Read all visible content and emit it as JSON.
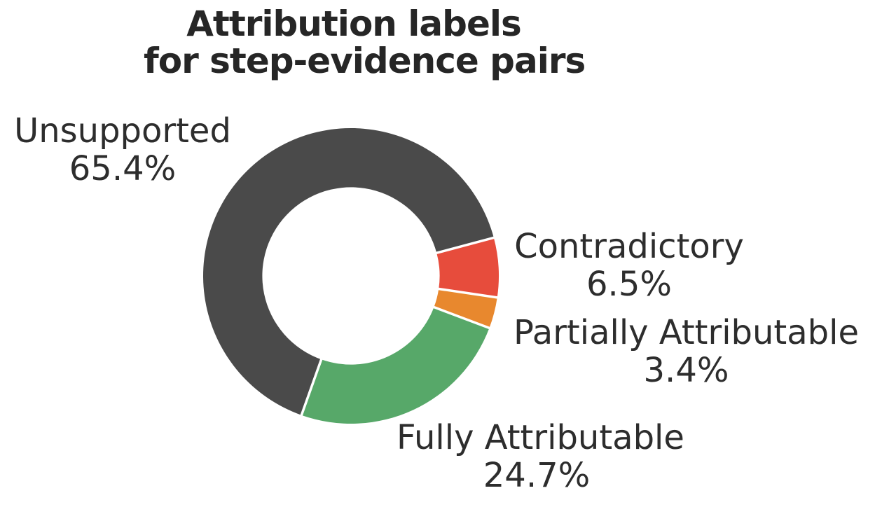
{
  "figure": {
    "title_line1": "Attribution labels",
    "title_line2": "for step-evidence pairs"
  },
  "chart_data": {
    "type": "pie",
    "title": "Attribution labels for step-evidence pairs",
    "donut": true,
    "inner_radius_ratio": 0.6,
    "start_angle_deg": -15,
    "direction": "clockwise",
    "legend": "none",
    "edge_color": "#ffffff",
    "segments": [
      {
        "label": "Contradictory",
        "value": 6.5,
        "pct_label": "6.5%",
        "color": "#e74c3c"
      },
      {
        "label": "Partially Attributable",
        "value": 3.4,
        "pct_label": "3.4%",
        "color": "#e8882e"
      },
      {
        "label": "Fully Attributable",
        "value": 24.7,
        "pct_label": "24.7%",
        "color": "#57a869"
      },
      {
        "label": "Unsupported",
        "value": 65.4,
        "pct_label": "65.4%",
        "color": "#4a4a4a"
      }
    ]
  }
}
